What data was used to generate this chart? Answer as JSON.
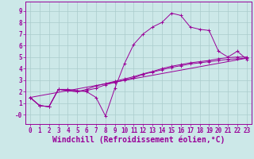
{
  "bg_color": "#cce8e8",
  "line_color": "#990099",
  "grid_color": "#aacccc",
  "xlabel": "Windchill (Refroidissement éolien,°C)",
  "xlim_min": -0.5,
  "xlim_max": 23.5,
  "ylim_min": -0.8,
  "ylim_max": 9.8,
  "xticks": [
    0,
    1,
    2,
    3,
    4,
    5,
    6,
    7,
    8,
    9,
    10,
    11,
    12,
    13,
    14,
    15,
    16,
    17,
    18,
    19,
    20,
    21,
    22,
    23
  ],
  "yticks": [
    0,
    1,
    2,
    3,
    4,
    5,
    6,
    7,
    8,
    9
  ],
  "ytick_labels": [
    "-0",
    "1",
    "2",
    "3",
    "4",
    "5",
    "6",
    "7",
    "8",
    "9"
  ],
  "lines": [
    {
      "x": [
        0,
        1,
        2,
        3,
        4,
        5,
        6,
        7,
        8,
        9,
        10,
        11,
        12,
        13,
        14,
        15,
        16,
        17,
        18,
        19,
        20,
        21,
        22,
        23
      ],
      "y": [
        1.5,
        0.8,
        0.7,
        2.2,
        2.2,
        2.1,
        2.0,
        1.5,
        -0.1,
        2.3,
        4.4,
        6.1,
        7.0,
        7.6,
        8.0,
        8.8,
        8.6,
        7.6,
        7.4,
        7.3,
        5.5,
        5.0,
        5.5,
        4.8
      ],
      "marker": "+"
    },
    {
      "x": [
        0,
        1,
        2,
        3,
        4,
        5,
        6,
        7,
        8,
        9,
        10,
        11,
        12,
        13,
        14,
        15,
        16,
        17,
        18,
        19,
        20,
        21,
        22,
        23
      ],
      "y": [
        1.5,
        0.8,
        0.7,
        2.2,
        2.1,
        2.0,
        2.1,
        2.3,
        2.6,
        2.8,
        3.0,
        3.2,
        3.5,
        3.7,
        3.9,
        4.1,
        4.25,
        4.4,
        4.5,
        4.6,
        4.7,
        4.8,
        4.85,
        4.9
      ],
      "marker": "+"
    },
    {
      "x": [
        0,
        1,
        2,
        3,
        4,
        5,
        6,
        7,
        8,
        9,
        10,
        11,
        12,
        13,
        14,
        15,
        16,
        17,
        18,
        19,
        20,
        21,
        22,
        23
      ],
      "y": [
        1.5,
        0.8,
        0.7,
        2.2,
        2.1,
        2.0,
        2.2,
        2.5,
        2.7,
        2.9,
        3.1,
        3.3,
        3.55,
        3.75,
        4.0,
        4.2,
        4.35,
        4.5,
        4.6,
        4.7,
        4.85,
        4.95,
        5.0,
        5.0
      ],
      "marker": "+"
    },
    {
      "x": [
        0,
        23
      ],
      "y": [
        1.5,
        4.9
      ],
      "marker": null
    }
  ],
  "font_color": "#990099",
  "tick_fontsize": 5.5,
  "label_fontsize": 7.0
}
